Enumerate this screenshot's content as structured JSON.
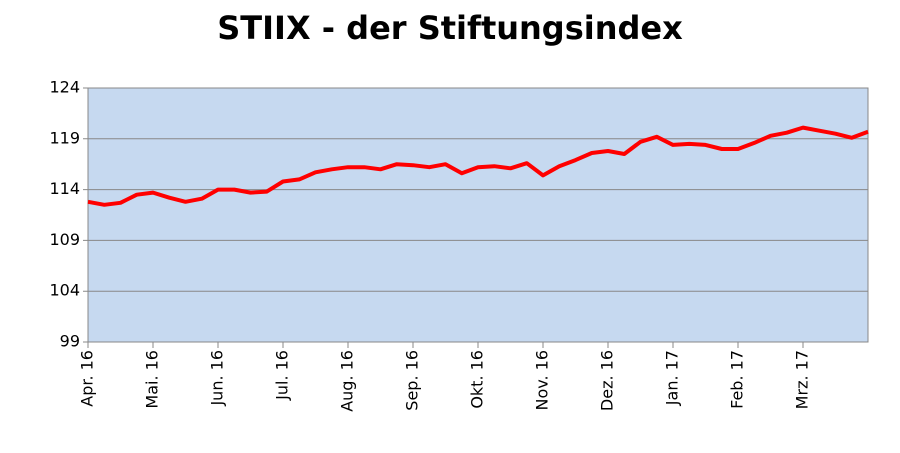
{
  "chart_data": {
    "type": "line",
    "title": "STIIX - der Stiftungsindex",
    "categories": [
      "Apr. 16",
      null,
      null,
      null,
      "Mai. 16",
      null,
      null,
      null,
      "Jun. 16",
      null,
      null,
      null,
      "Jul. 16",
      null,
      null,
      null,
      "Aug. 16",
      null,
      null,
      null,
      "Sep. 16",
      null,
      null,
      null,
      "Okt. 16",
      null,
      null,
      null,
      "Nov. 16",
      null,
      null,
      null,
      "Dez. 16",
      null,
      null,
      null,
      "Jan. 17",
      null,
      null,
      null,
      "Feb. 17",
      null,
      null,
      null,
      "Mrz. 17",
      null,
      null,
      null,
      null
    ],
    "series": [
      {
        "name": "STIIX",
        "color": "#ff0000",
        "values": [
          112.8,
          112.5,
          112.7,
          113.5,
          113.7,
          113.2,
          112.8,
          113.1,
          114.0,
          114.0,
          113.7,
          113.8,
          114.8,
          115.0,
          115.7,
          116.0,
          116.2,
          116.2,
          116.0,
          116.5,
          116.4,
          116.2,
          116.5,
          115.6,
          116.2,
          116.3,
          116.1,
          116.6,
          115.4,
          116.3,
          116.9,
          117.6,
          117.8,
          117.5,
          118.7,
          119.2,
          118.4,
          118.5,
          118.4,
          118.0,
          118.0,
          118.6,
          119.3,
          119.6,
          120.1,
          119.8,
          119.5,
          119.1,
          119.7
        ]
      }
    ],
    "ylim": [
      99,
      124
    ],
    "yticks": [
      99,
      104,
      109,
      114,
      119,
      124
    ],
    "grid": true,
    "plot_background": "#c6d9f0"
  }
}
